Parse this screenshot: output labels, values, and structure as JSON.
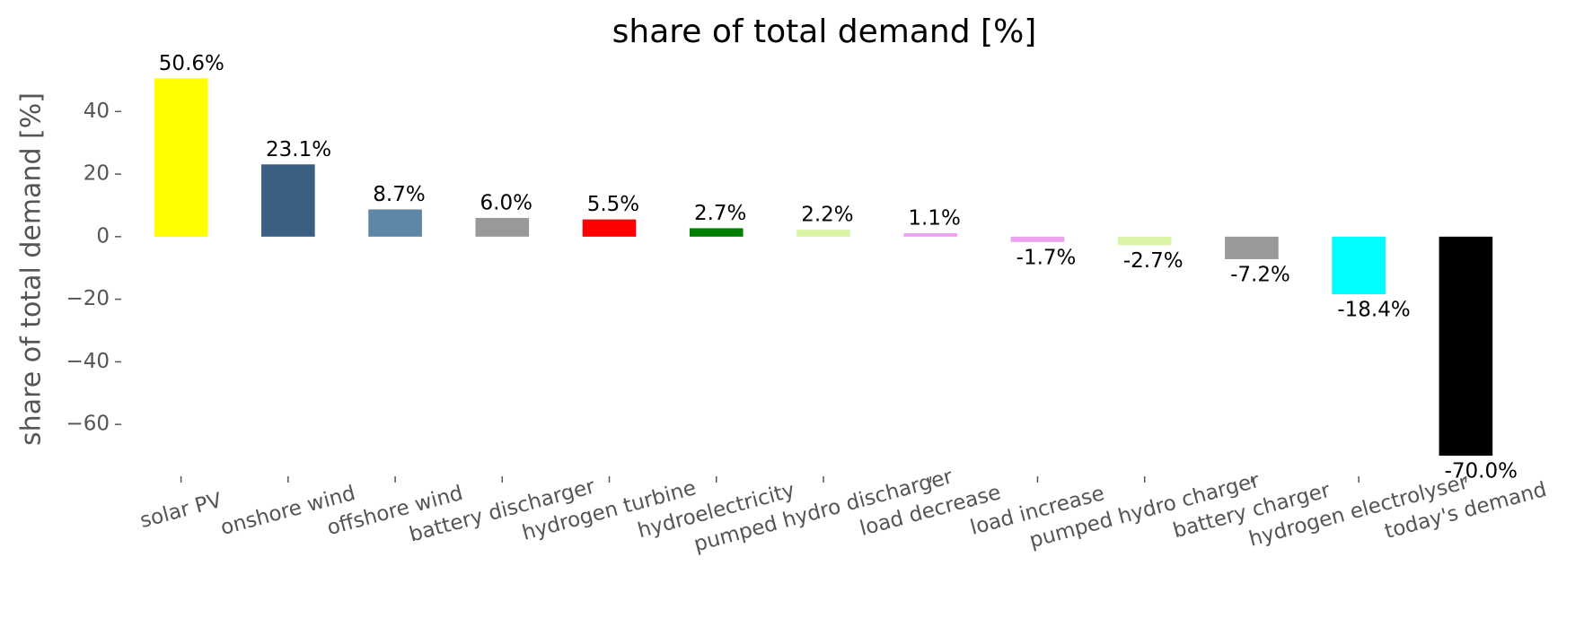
{
  "chart_data": {
    "type": "bar",
    "title": "share of total demand [%]",
    "ylabel": "share of total demand [%]",
    "categories": [
      "solar PV",
      "onshore wind",
      "offshore wind",
      "battery discharger",
      "hydrogen turbine",
      "hydroelectricity",
      "pumped hydro discharger",
      "load decrease",
      "load increase",
      "pumped hydro charger",
      "battery charger",
      "hydrogen electrolyser",
      "today's demand"
    ],
    "values": [
      50.6,
      23.1,
      8.7,
      6.0,
      5.5,
      2.7,
      2.2,
      1.1,
      -1.7,
      -2.7,
      -7.2,
      -18.4,
      -70.0
    ],
    "value_labels": [
      "50.6%",
      "23.1%",
      "8.7%",
      "6.0%",
      "5.5%",
      "2.7%",
      "2.2%",
      "1.1%",
      "-1.7%",
      "-2.7%",
      "-7.2%",
      "-18.4%",
      "-70.0%"
    ],
    "colors": [
      "#ffff00",
      "#3a5f82",
      "#5e86a7",
      "#999999",
      "#ff0000",
      "#008000",
      "#d9f5a5",
      "#f0a0f0",
      "#f0a0f0",
      "#d9f5a5",
      "#999999",
      "#00ffff",
      "#000000"
    ],
    "ylim": [
      -74,
      57
    ],
    "yticks": [
      {
        "value": -60,
        "label": "−60"
      },
      {
        "value": -40,
        "label": "−40"
      },
      {
        "value": -20,
        "label": "−20"
      },
      0,
      20,
      40
    ],
    "grid": false
  }
}
